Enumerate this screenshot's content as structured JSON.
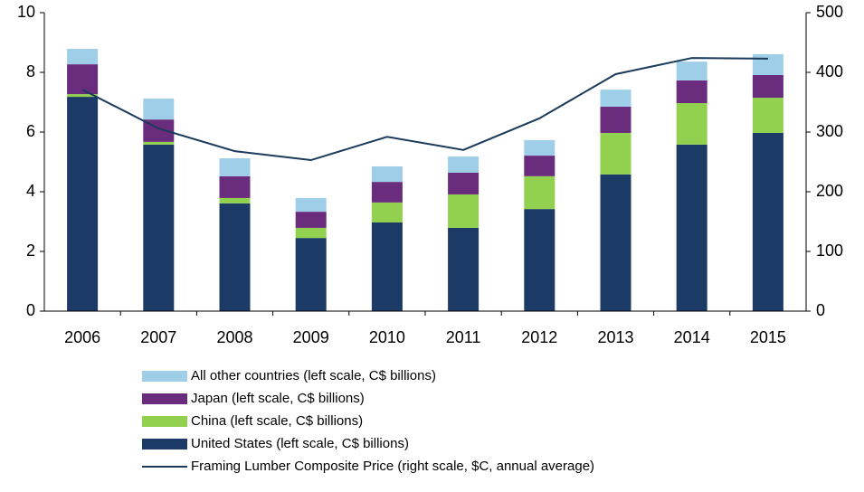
{
  "chart_data": {
    "type": "bar",
    "stacked": true,
    "categories": [
      "2006",
      "2007",
      "2008",
      "2009",
      "2010",
      "2011",
      "2012",
      "2013",
      "2014",
      "2015"
    ],
    "series": [
      {
        "name": "United States (left scale, C$ billions)",
        "color": "#1b3a66",
        "values": [
          7.18,
          5.58,
          3.61,
          2.45,
          2.97,
          2.79,
          3.42,
          4.58,
          5.58,
          5.97
        ]
      },
      {
        "name": "China (left scale, C$ billions)",
        "color": "#92d050",
        "values": [
          0.09,
          0.09,
          0.18,
          0.34,
          0.67,
          1.12,
          1.1,
          1.39,
          1.39,
          1.18
        ]
      },
      {
        "name": "Japan (left scale, C$ billions)",
        "color": "#6a2c7c",
        "values": [
          1.0,
          0.75,
          0.73,
          0.54,
          0.69,
          0.73,
          0.69,
          0.88,
          0.76,
          0.76
        ]
      },
      {
        "name": "All other countries (left scale, C$ billions)",
        "color": "#9fcfe8",
        "values": [
          0.52,
          0.7,
          0.6,
          0.46,
          0.52,
          0.54,
          0.52,
          0.57,
          0.63,
          0.7
        ]
      },
      {
        "name": "Framing Lumber Composite Price (right scale, $C, annual average)",
        "color": "#1b3a5c",
        "type": "line",
        "axis": "y2",
        "values": [
          371,
          306,
          268,
          253,
          292,
          270,
          323,
          397,
          424,
          423
        ]
      }
    ],
    "ylim": [
      0,
      10
    ],
    "yticks": [
      0,
      2,
      4,
      6,
      8,
      10
    ],
    "y2lim": [
      0,
      500
    ],
    "y2ticks": [
      0,
      100,
      200,
      300,
      400,
      500
    ],
    "grid": false
  }
}
